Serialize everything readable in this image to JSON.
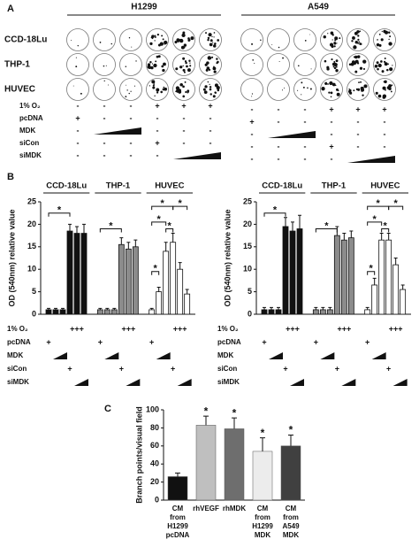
{
  "panel_labels": [
    "A",
    "B",
    "C"
  ],
  "panel_a": {
    "cell_lines": [
      "H1299",
      "A549"
    ],
    "rows": [
      "CCD-18Lu",
      "THP-1",
      "HUVEC"
    ],
    "conditions": [
      {
        "name": "1% O₂",
        "signs": [
          "-",
          "-",
          "-",
          "+",
          "+",
          "+"
        ]
      },
      {
        "name": "pcDNA",
        "signs": [
          "+",
          "-",
          "-",
          "-",
          "-",
          "-"
        ]
      },
      {
        "name": "MDK",
        "signs": [
          "-",
          null,
          null,
          "-",
          "-",
          "-"
        ]
      },
      {
        "name": "siCon",
        "signs": [
          "-",
          "-",
          "-",
          "+",
          "-",
          "-"
        ]
      },
      {
        "name": "siMDK",
        "signs": [
          "-",
          "-",
          "-",
          "-",
          null,
          null
        ]
      }
    ]
  },
  "chart_data": [
    {
      "type": "grouped_bar",
      "y_label": "OD (540nm) relative value",
      "ylim": [
        0,
        25
      ],
      "yticks": [
        0,
        5,
        10,
        15,
        20,
        25
      ],
      "series": [
        {
          "name": "CCD-18Lu",
          "color": "#111111",
          "values": [
            1,
            1,
            1,
            18.5,
            18,
            18
          ],
          "errors": [
            0.3,
            0.3,
            0.3,
            1.5,
            1.5,
            2
          ]
        },
        {
          "name": "THP-1",
          "color": "#8c8c8c",
          "values": [
            1,
            1,
            1,
            15.5,
            14.5,
            15
          ],
          "errors": [
            0.3,
            0.3,
            0.3,
            1.5,
            1.5,
            1.5
          ]
        },
        {
          "name": "HUVEC",
          "color": "#ffffff",
          "values": [
            1,
            5,
            14,
            16,
            10,
            4.5
          ],
          "errors": [
            0.3,
            1,
            2,
            2,
            1.5,
            1
          ]
        }
      ],
      "significance": "*",
      "conditions": [
        "1% O₂",
        "pcDNA",
        "MDK",
        "siCon",
        "siMDK"
      ],
      "condition_marks": [
        "+++",
        "+"
      ]
    },
    {
      "type": "grouped_bar",
      "y_label": "OD (540nm) relative value",
      "ylim": [
        0,
        25
      ],
      "yticks": [
        0,
        5,
        10,
        15,
        20,
        25
      ],
      "series": [
        {
          "name": "CCD-18Lu",
          "color": "#111111",
          "values": [
            1,
            1,
            1,
            19.5,
            18.5,
            19
          ],
          "errors": [
            0.5,
            0.5,
            0.5,
            2,
            2,
            3
          ]
        },
        {
          "name": "THP-1",
          "color": "#8c8c8c",
          "values": [
            1,
            1,
            1,
            17.5,
            16.5,
            17
          ],
          "errors": [
            0.5,
            0.5,
            0.5,
            2,
            1.5,
            1.5
          ]
        },
        {
          "name": "HUVEC",
          "color": "#ffffff",
          "values": [
            1,
            6.5,
            16.5,
            16.5,
            11,
            5.5
          ],
          "errors": [
            0.5,
            1.5,
            1.5,
            1.5,
            1.5,
            1
          ]
        }
      ],
      "significance": "*",
      "conditions": [
        "1% O₂",
        "pcDNA",
        "MDK",
        "siCon",
        "siMDK"
      ],
      "condition_marks": [
        "+++",
        "+"
      ]
    },
    {
      "type": "bar",
      "y_label": "Branch points/visual field",
      "ylim": [
        0,
        100
      ],
      "yticks": [
        0,
        20,
        40,
        60,
        80,
        100
      ],
      "categories": [
        [
          "CM",
          "from",
          "H1299",
          "pcDNA"
        ],
        [
          "rhVEGF"
        ],
        [
          "rhMDK"
        ],
        [
          "CM",
          "from",
          "H1299",
          "MDK"
        ],
        [
          "CM",
          "from",
          "A549",
          "MDK"
        ]
      ],
      "values": [
        26,
        83,
        79,
        54,
        60
      ],
      "errors": [
        4,
        10,
        12,
        15,
        12
      ],
      "colors": [
        "#111111",
        "#bfbfbf",
        "#6e6e6e",
        "#ececec",
        "#404040"
      ],
      "significance": "*"
    }
  ]
}
